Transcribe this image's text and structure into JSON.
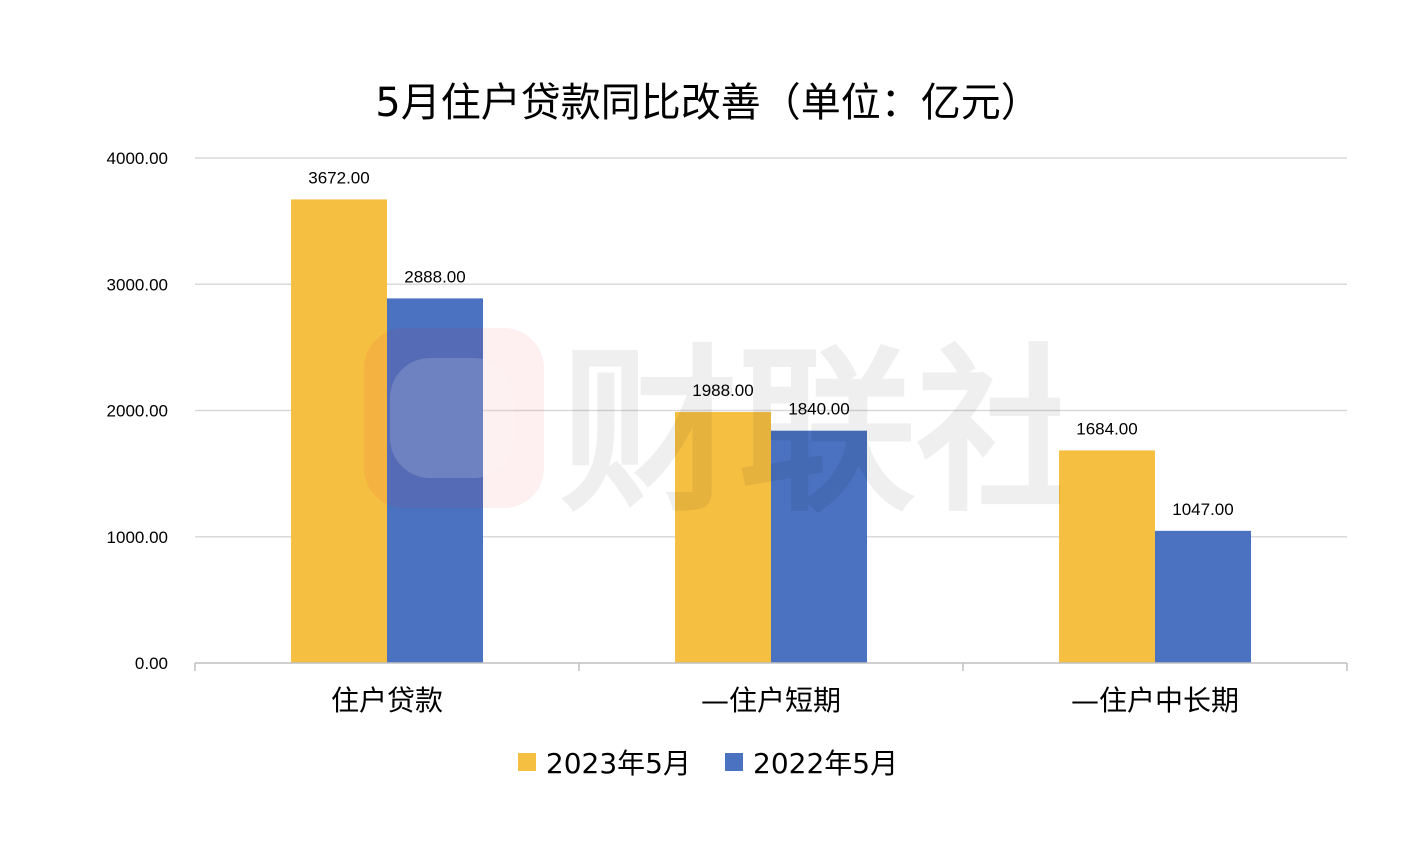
{
  "chart_data": {
    "type": "bar",
    "title": "5月住户贷款同比改善（单位：亿元）",
    "categories": [
      "住户贷款",
      "—住户短期",
      "—住户中长期"
    ],
    "series": [
      {
        "name": "2023年5月",
        "color": "#F5BF42",
        "values": [
          3672.0,
          1988.0,
          1684.0
        ],
        "labels": [
          "3672.00",
          "1988.00",
          "1684.00"
        ]
      },
      {
        "name": "2022年5月",
        "color": "#4A72C0",
        "values": [
          2888.0,
          1840.0,
          1047.0
        ],
        "labels": [
          "2888.00",
          "1840.00",
          "1047.00"
        ]
      }
    ],
    "ylim": [
      0,
      4000
    ],
    "yticks": [
      "0.00",
      "1000.00",
      "2000.00",
      "3000.00",
      "4000.00"
    ],
    "xlabel": "",
    "ylabel": "",
    "grid": true,
    "legend": "bottom"
  },
  "watermark": {
    "text": "财联社",
    "logo": "cls-logo-icon"
  }
}
